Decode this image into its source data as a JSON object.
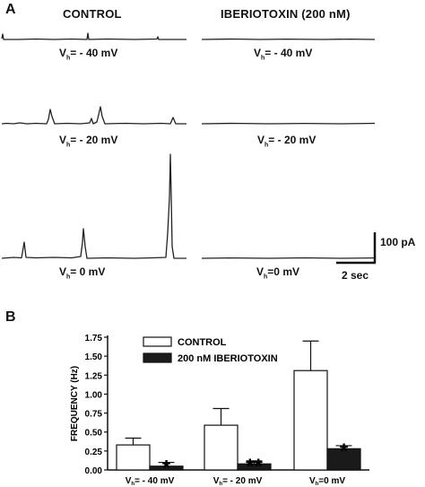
{
  "panel_a": {
    "letter": "A",
    "columns": {
      "control": "CONTROL",
      "iberiotoxin": "IBERIOTOXIN (200 nM)"
    },
    "labels": {
      "m40": {
        "pre": "V",
        "sub": "h",
        "post": "= - 40 mV"
      },
      "m20": {
        "pre": "V",
        "sub": "h",
        "post": "= - 20 mV"
      },
      "z0": {
        "pre": "V",
        "sub": "h",
        "post": "= 0 mV"
      },
      "z0b": {
        "pre": "V",
        "sub": "h",
        "post": "=0  mV"
      }
    },
    "scale": {
      "current": "100 pA",
      "time": "2 sec"
    }
  },
  "panel_b": {
    "letter": "B",
    "significance": {
      "m40": "*",
      "m20": "**",
      "z0": "*"
    },
    "bar_colors": {
      "control": "#ffffff",
      "iberiotoxin": "#1a1a1a"
    }
  },
  "chart_data": {
    "type": "bar",
    "title": "",
    "xlabel": "",
    "ylabel": "FREQUENCY (Hz)",
    "ylim": [
      0,
      1.75
    ],
    "yticks": [
      "0.00",
      "0.25",
      "0.50",
      "0.75",
      "1.00",
      "1.25",
      "1.50",
      "1.75"
    ],
    "categories": [
      "Vh= - 40 mV",
      "Vh= - 20 mV",
      "Vh=0 mV"
    ],
    "category_labels": [
      {
        "pre": "V",
        "sub": "h",
        "post": "= - 40 mV"
      },
      {
        "pre": "V",
        "sub": "h",
        "post": "= - 20 mV"
      },
      {
        "pre": "V",
        "sub": "h",
        "post": "=0  mV"
      }
    ],
    "legend_position": "top",
    "grid": false,
    "series": [
      {
        "name": "CONTROL",
        "color": "#ffffff",
        "values": [
          0.33,
          0.59,
          1.31
        ],
        "errors": [
          0.09,
          0.22,
          0.39
        ]
      },
      {
        "name": "200 nM IBERIOTOXIN",
        "color": "#1a1a1a",
        "values": [
          0.05,
          0.08,
          0.28
        ],
        "errors": [
          0.05,
          0.04,
          0.04
        ]
      }
    ]
  }
}
